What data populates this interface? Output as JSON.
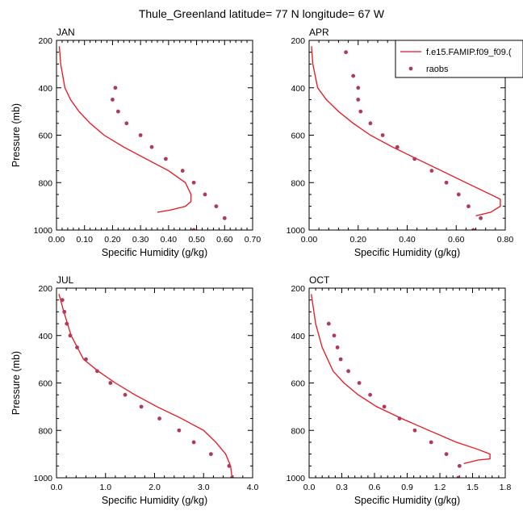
{
  "figure": {
    "title": "Thule_Greenland  latitude= 77 N longitude= 67 W"
  },
  "legend": {
    "entries": [
      {
        "label": "f.e15.FAMIP.f09_f09.(",
        "kind": "line",
        "color": "#e8141e"
      },
      {
        "label": "raobs",
        "kind": "marker",
        "color": "#b03a5b"
      }
    ],
    "placement": "top-right of APR panel"
  },
  "chart_data": [
    {
      "type": "line",
      "panel": "JAN",
      "xlabel": "Specific Humidity (g/kg)",
      "ylabel": "Pressure (mb)",
      "xlim": [
        0,
        0.7
      ],
      "ylim": [
        1000,
        200
      ],
      "y_inverted": true,
      "x_ticks": [
        "0.00",
        "0.10",
        "0.20",
        "0.30",
        "0.40",
        "0.50",
        "0.60",
        "0.70"
      ],
      "y_ticks": [
        "200",
        "400",
        "600",
        "800",
        "1000"
      ],
      "series": [
        {
          "kind": "line",
          "x": [
            0.36,
            0.41,
            0.46,
            0.48,
            0.48,
            0.46,
            0.4,
            0.32,
            0.24,
            0.17,
            0.12,
            0.08,
            0.05,
            0.03,
            0.015,
            0.01
          ],
          "y": [
            925,
            915,
            900,
            880,
            850,
            800,
            750,
            700,
            650,
            600,
            550,
            500,
            450,
            400,
            300,
            225
          ]
        },
        {
          "kind": "scatter",
          "x": [
            0.21,
            0.2,
            0.22,
            0.25,
            0.3,
            0.34,
            0.39,
            0.45,
            0.49,
            0.53,
            0.57,
            0.6,
            0.49
          ],
          "y": [
            400,
            450,
            500,
            550,
            600,
            650,
            700,
            750,
            800,
            850,
            900,
            950,
            1000
          ]
        }
      ]
    },
    {
      "type": "line",
      "panel": "APR",
      "xlabel": "Specific Humidity (g/kg)",
      "ylabel": "",
      "xlim": [
        0,
        0.8
      ],
      "ylim": [
        1000,
        200
      ],
      "y_inverted": true,
      "x_ticks": [
        "0.00",
        "0.20",
        "0.40",
        "0.60",
        "0.80"
      ],
      "y_ticks": [
        "200",
        "400",
        "600",
        "800",
        "1000"
      ],
      "series": [
        {
          "kind": "line",
          "x": [
            0.68,
            0.74,
            0.78,
            0.78,
            0.74,
            0.64,
            0.54,
            0.44,
            0.34,
            0.25,
            0.18,
            0.12,
            0.07,
            0.035,
            0.015,
            0.01
          ],
          "y": [
            940,
            925,
            900,
            870,
            850,
            800,
            750,
            700,
            650,
            600,
            550,
            500,
            450,
            400,
            300,
            225
          ]
        },
        {
          "kind": "scatter",
          "x": [
            0.15,
            0.18,
            0.2,
            0.2,
            0.21,
            0.25,
            0.3,
            0.36,
            0.43,
            0.5,
            0.56,
            0.61,
            0.65,
            0.7,
            0.67
          ],
          "y": [
            250,
            350,
            400,
            450,
            500,
            550,
            600,
            650,
            700,
            750,
            800,
            850,
            900,
            950,
            1000
          ]
        }
      ]
    },
    {
      "type": "line",
      "panel": "JUL",
      "xlabel": "Specific Humidity (g/kg)",
      "ylabel": "Pressure (mb)",
      "xlim": [
        0,
        4.0
      ],
      "ylim": [
        1000,
        200
      ],
      "y_inverted": true,
      "x_ticks": [
        "0.0",
        "1.0",
        "2.0",
        "3.0",
        "4.0"
      ],
      "y_ticks": [
        "200",
        "400",
        "600",
        "800",
        "1000"
      ],
      "series": [
        {
          "kind": "line",
          "x": [
            3.58,
            3.55,
            3.45,
            3.25,
            3.0,
            2.55,
            2.05,
            1.6,
            1.2,
            0.85,
            0.55,
            0.3,
            0.15,
            0.05
          ],
          "y": [
            1000,
            950,
            900,
            850,
            800,
            750,
            700,
            650,
            600,
            550,
            500,
            400,
            300,
            225
          ]
        },
        {
          "kind": "scatter",
          "x": [
            0.12,
            0.16,
            0.21,
            0.28,
            0.42,
            0.6,
            0.83,
            1.1,
            1.4,
            1.73,
            2.1,
            2.5,
            2.8,
            3.15,
            3.52,
            3.58
          ],
          "y": [
            250,
            300,
            350,
            400,
            450,
            500,
            550,
            600,
            650,
            700,
            750,
            800,
            850,
            900,
            950,
            1000
          ]
        }
      ]
    },
    {
      "type": "line",
      "panel": "OCT",
      "xlabel": "Specific Humidity (g/kg)",
      "ylabel": "",
      "xlim": [
        0,
        1.8
      ],
      "ylim": [
        1000,
        200
      ],
      "y_inverted": true,
      "x_ticks": [
        "0.0",
        "0.3",
        "0.6",
        "0.9",
        "1.2",
        "1.5",
        "1.8"
      ],
      "y_ticks": [
        "200",
        "400",
        "600",
        "800",
        "1000"
      ],
      "series": [
        {
          "kind": "line",
          "x": [
            1.42,
            1.55,
            1.66,
            1.66,
            1.55,
            1.35,
            1.1,
            0.85,
            0.62,
            0.45,
            0.32,
            0.22,
            0.12,
            0.06,
            0.02
          ],
          "y": [
            940,
            925,
            920,
            900,
            880,
            850,
            800,
            750,
            700,
            650,
            600,
            550,
            450,
            350,
            225
          ]
        },
        {
          "kind": "scatter",
          "x": [
            0.18,
            0.23,
            0.26,
            0.29,
            0.36,
            0.46,
            0.56,
            0.69,
            0.83,
            0.97,
            1.12,
            1.26,
            1.38,
            1.37
          ],
          "y": [
            350,
            400,
            450,
            500,
            550,
            600,
            650,
            700,
            750,
            800,
            850,
            900,
            950,
            1000
          ]
        }
      ]
    }
  ]
}
